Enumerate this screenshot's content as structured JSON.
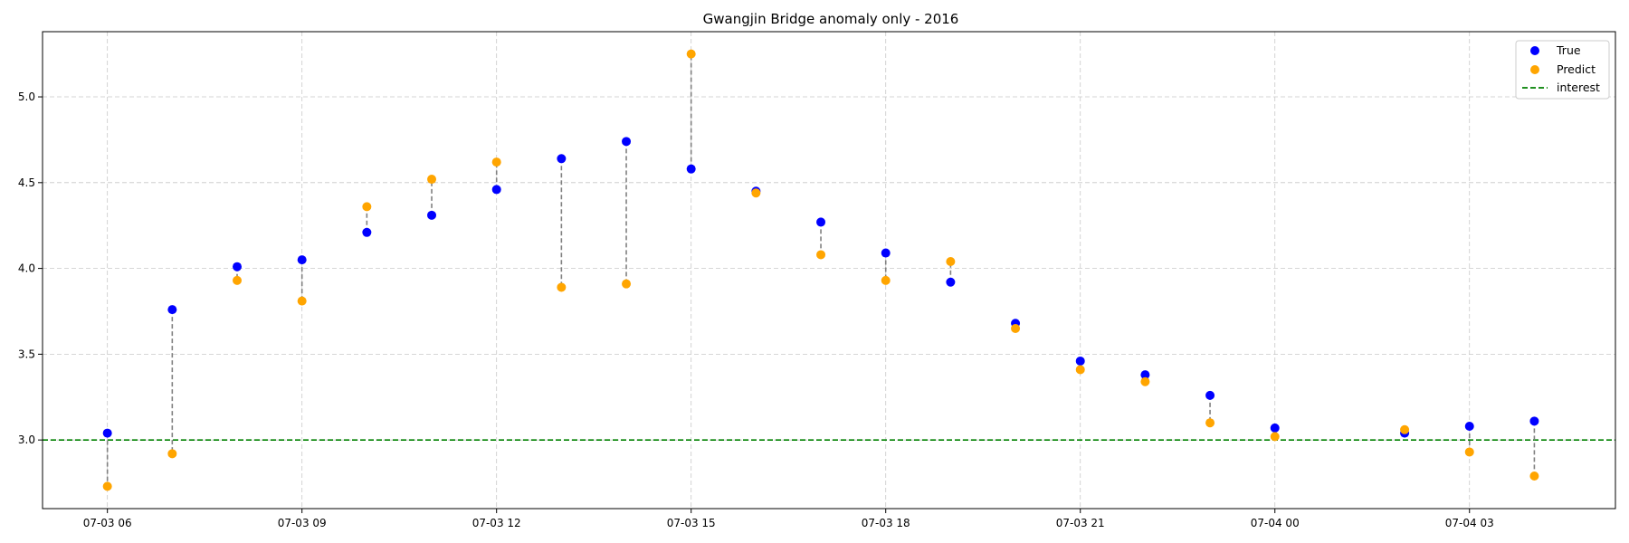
{
  "chart_data": {
    "type": "scatter",
    "title": "Gwangjin Bridge anomaly only - 2016",
    "xlabel": "",
    "ylabel": "",
    "x_unit": "hour",
    "x_range": [
      "07-03 05:00",
      "07-04 05:15"
    ],
    "ylim": [
      2.6,
      5.38
    ],
    "grid": true,
    "legend_position": "top-right",
    "x_ticks": [
      {
        "x": "07-03 06:00",
        "label": "07-03 06"
      },
      {
        "x": "07-03 09:00",
        "label": "07-03 09"
      },
      {
        "x": "07-03 12:00",
        "label": "07-03 12"
      },
      {
        "x": "07-03 15:00",
        "label": "07-03 15"
      },
      {
        "x": "07-03 18:00",
        "label": "07-03 18"
      },
      {
        "x": "07-03 21:00",
        "label": "07-03 21"
      },
      {
        "x": "07-04 00:00",
        "label": "07-04 00"
      },
      {
        "x": "07-04 03:00",
        "label": "07-04 03"
      }
    ],
    "y_ticks": [
      {
        "y": 3.0,
        "label": "3.0"
      },
      {
        "y": 3.5,
        "label": "3.5"
      },
      {
        "y": 4.0,
        "label": "4.0"
      },
      {
        "y": 4.5,
        "label": "4.5"
      },
      {
        "y": 5.0,
        "label": "5.0"
      }
    ],
    "x": [
      "07-03 06:00",
      "07-03 07:00",
      "07-03 08:00",
      "07-03 09:00",
      "07-03 10:00",
      "07-03 11:00",
      "07-03 12:00",
      "07-03 13:00",
      "07-03 14:00",
      "07-03 15:00",
      "07-03 16:00",
      "07-03 17:00",
      "07-03 18:00",
      "07-03 19:00",
      "07-03 20:00",
      "07-03 21:00",
      "07-03 22:00",
      "07-03 23:00",
      "07-04 00:00",
      "07-04 02:00",
      "07-04 03:00",
      "07-04 04:00"
    ],
    "series": [
      {
        "name": "True",
        "color": "#0000ff",
        "values": [
          3.04,
          3.76,
          4.01,
          4.05,
          4.21,
          4.31,
          4.46,
          4.64,
          4.74,
          4.58,
          4.45,
          4.27,
          4.09,
          3.92,
          3.68,
          3.46,
          3.38,
          3.26,
          3.07,
          3.04,
          3.08,
          3.11
        ]
      },
      {
        "name": "Predict",
        "color": "#ffa500",
        "values": [
          2.73,
          2.92,
          3.93,
          3.81,
          4.36,
          4.52,
          4.62,
          3.89,
          3.91,
          5.25,
          4.44,
          4.08,
          3.93,
          4.04,
          3.65,
          3.41,
          3.34,
          3.1,
          3.02,
          3.06,
          2.93,
          2.79
        ]
      }
    ],
    "reference_lines": [
      {
        "name": "interest",
        "y": 3.0,
        "color": "#008000",
        "style": "dashed"
      }
    ],
    "connector_color": "#808080"
  }
}
